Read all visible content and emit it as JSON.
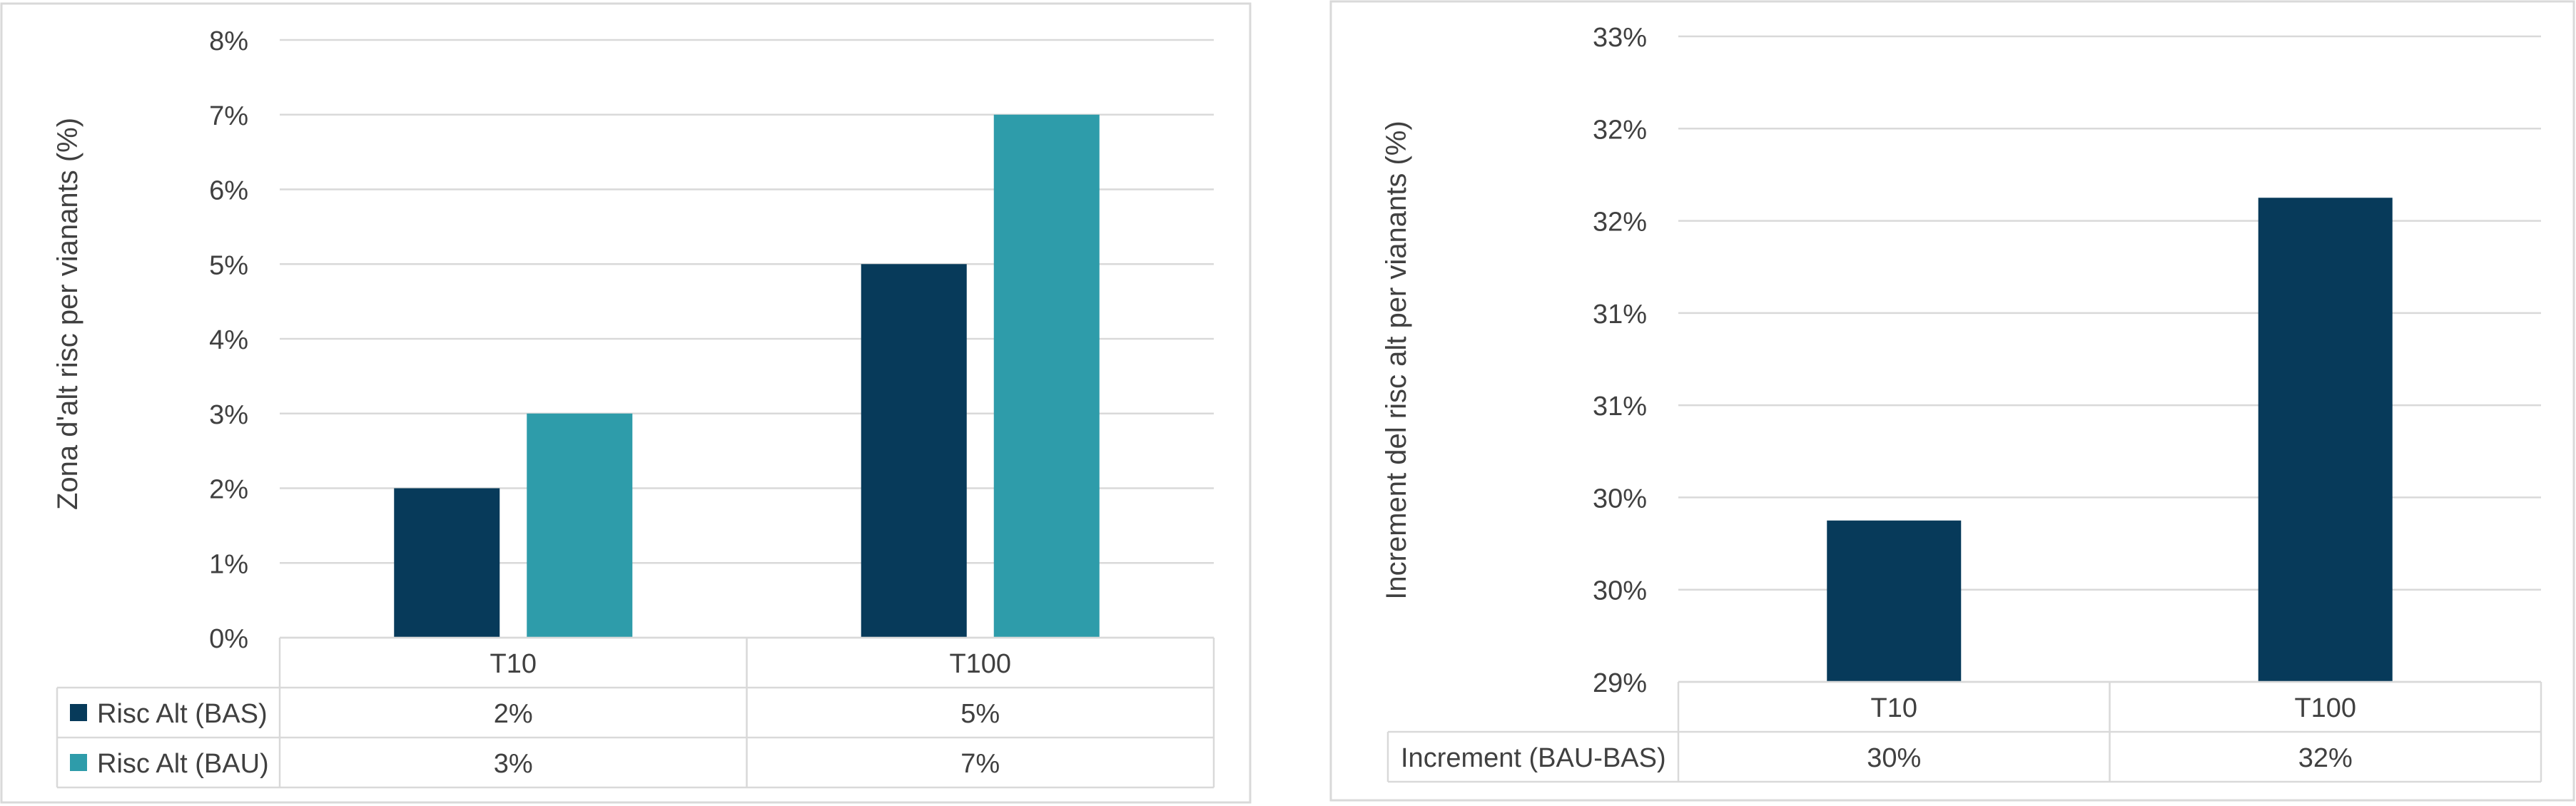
{
  "chart_data": [
    {
      "type": "bar",
      "categories": [
        "T10",
        "T100"
      ],
      "ylabel": "Zona d'alt risc per vianants (%)",
      "ylim": [
        0,
        8
      ],
      "y_ticks": [
        "0%",
        "1%",
        "2%",
        "3%",
        "4%",
        "5%",
        "6%",
        "7%",
        "8%"
      ],
      "grid": true,
      "legend": "data-table",
      "series": [
        {
          "name": "Risc Alt (BAS)",
          "values": [
            2,
            5
          ],
          "labels": [
            "2%",
            "5%"
          ],
          "color": "#073a5a"
        },
        {
          "name": "Risc Alt (BAU)",
          "values": [
            3,
            7
          ],
          "labels": [
            "3%",
            "7%"
          ],
          "color": "#2e9caa"
        }
      ]
    },
    {
      "type": "bar",
      "categories": [
        "T10",
        "T100"
      ],
      "ylabel": "Increment del risc alt per vianants (%)",
      "ylim": [
        29,
        33
      ],
      "y_ticks": [
        "29%",
        "30%",
        "30%",
        "31%",
        "31%",
        "32%",
        "32%",
        "33%"
      ],
      "grid": true,
      "legend": "data-table",
      "series": [
        {
          "name": "Increment (BAU-BAS)",
          "values": [
            30,
            32
          ],
          "labels": [
            "30%",
            "32%"
          ],
          "color": "#073a5a"
        }
      ]
    }
  ]
}
